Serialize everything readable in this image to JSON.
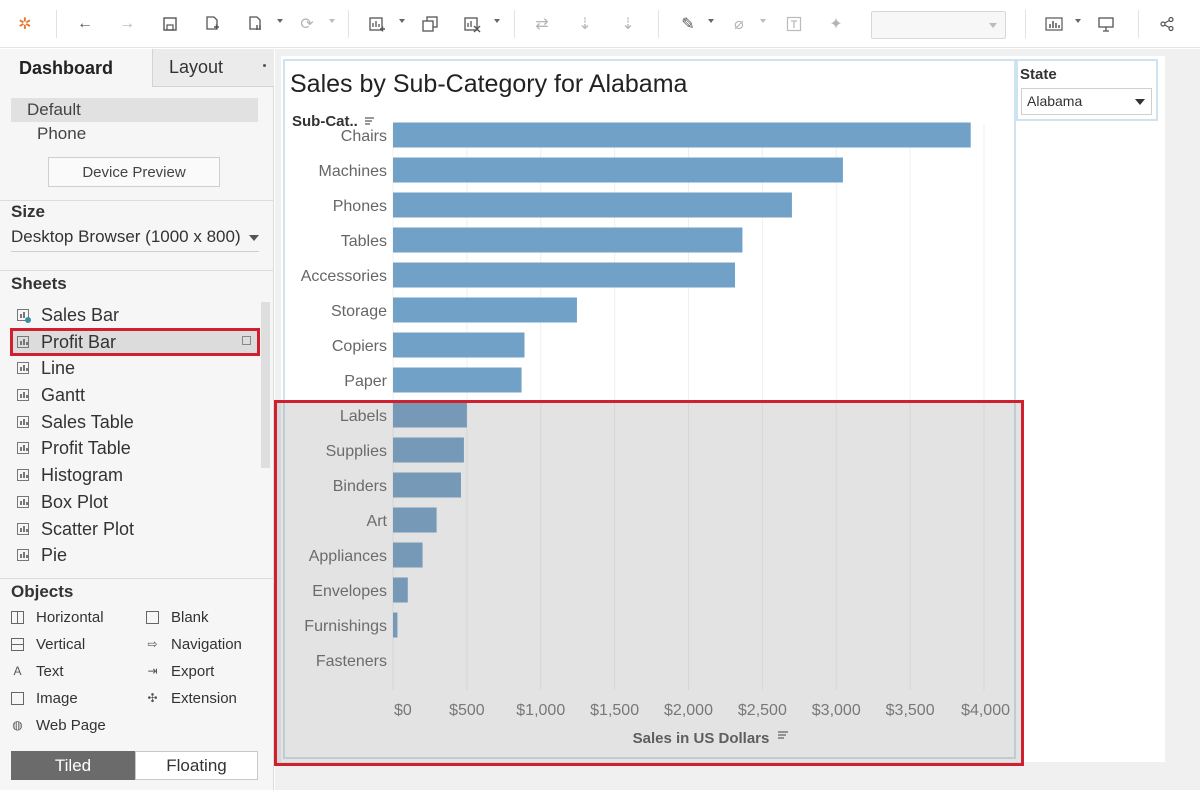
{
  "toolbar": {
    "icons": [
      "tableau-logo-icon",
      "back-icon",
      "forward-icon",
      "save-icon",
      "new-datasource-icon",
      "pause-icon",
      "refresh-icon",
      "new-sheet-icon",
      "duplicate-icon",
      "clear-icon",
      "swap-icon",
      "sort-asc-icon",
      "sort-desc-icon",
      "highlight-icon",
      "group-icon",
      "label-icon",
      "pin-icon",
      "show-me-icon",
      "presentation-icon",
      "share-icon"
    ],
    "fit_value": ""
  },
  "left_panel": {
    "tabs": {
      "dashboard": "Dashboard",
      "layout": "Layout"
    },
    "devices": {
      "default": "Default",
      "phone": "Phone"
    },
    "device_preview": "Device Preview",
    "size": {
      "title": "Size",
      "value": "Desktop Browser (1000 x 800)"
    },
    "sheets": {
      "title": "Sheets",
      "items": [
        "Sales Bar",
        "Profit Bar",
        "Line",
        "Gantt",
        "Sales Table",
        "Profit Table",
        "Histogram",
        "Box Plot",
        "Scatter Plot",
        "Pie"
      ],
      "active": "Profit Bar"
    },
    "objects": {
      "title": "Objects",
      "items": [
        "Horizontal",
        "Blank",
        "Vertical",
        "Navigation",
        "Text",
        "Export",
        "Image",
        "Extension",
        "Web Page"
      ]
    },
    "layout_toggle": {
      "tiled": "Tiled",
      "floating": "Floating"
    }
  },
  "dashboard": {
    "state_filter": {
      "title": "State",
      "value": "Alabama"
    }
  },
  "chart_data": {
    "type": "bar",
    "orientation": "horizontal",
    "title": "Sales by Sub-Category for Alabama",
    "ylabel": "Sub-Cat..",
    "xlabel": "Sales in US Dollars",
    "categories": [
      "Chairs",
      "Machines",
      "Phones",
      "Tables",
      "Accessories",
      "Storage",
      "Copiers",
      "Paper",
      "Labels",
      "Supplies",
      "Binders",
      "Art",
      "Appliances",
      "Envelopes",
      "Furnishings",
      "Fasteners"
    ],
    "values": [
      3910,
      3045,
      2700,
      2365,
      2315,
      1245,
      890,
      870,
      500,
      480,
      460,
      295,
      200,
      100,
      30,
      0
    ],
    "xticks": [
      "$0",
      "$500",
      "$1,000",
      "$1,500",
      "$2,000",
      "$2,500",
      "$3,000",
      "$3,500",
      "$4,000"
    ],
    "xlim": [
      0,
      4000
    ],
    "bar_color": "#72a1c7",
    "grid": "vertical"
  },
  "colors": {
    "accent_red": "#d01f2e",
    "frame_blue": "#cfe2ef"
  }
}
